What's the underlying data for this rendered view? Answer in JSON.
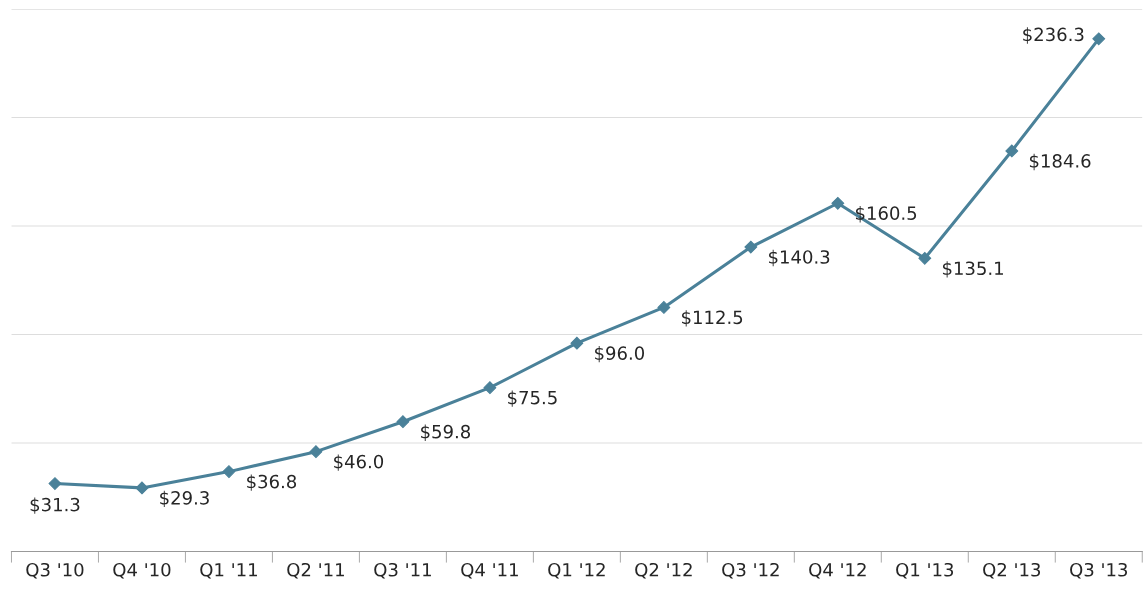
{
  "chart_data": {
    "type": "line",
    "categories": [
      "Q3 '10",
      "Q4 '10",
      "Q1 '11",
      "Q2 '11",
      "Q3 '11",
      "Q4 '11",
      "Q1 '12",
      "Q2 '12",
      "Q3 '12",
      "Q4 '12",
      "Q1 '13",
      "Q2 '13",
      "Q3 '13"
    ],
    "series": [
      {
        "color": "#4a8199",
        "values": [
          31.3,
          29.3,
          36.8,
          46.0,
          59.8,
          75.5,
          96.0,
          112.5,
          140.3,
          160.5,
          135.1,
          184.6,
          236.3
        ],
        "value_labels": [
          "$31.3",
          "$29.3",
          "$36.8",
          "$46.0",
          "$59.8",
          "$75.5",
          "$96.0",
          "$112.5",
          "$140.3",
          "$160.5",
          "$135.1",
          "$184.6",
          "$236.3"
        ]
      }
    ],
    "ylim": [
      0,
      250
    ],
    "yticks": [
      {
        "value": 0,
        "label": null
      },
      {
        "value": 50,
        "label": null
      },
      {
        "value": 100,
        "label": null
      },
      {
        "value": 150,
        "label": null
      },
      {
        "value": 200,
        "label": null
      },
      {
        "value": 250,
        "label": null
      }
    ],
    "grid": "y",
    "tick_labels": "x",
    "marker": "diamond",
    "line_style": "solid"
  }
}
